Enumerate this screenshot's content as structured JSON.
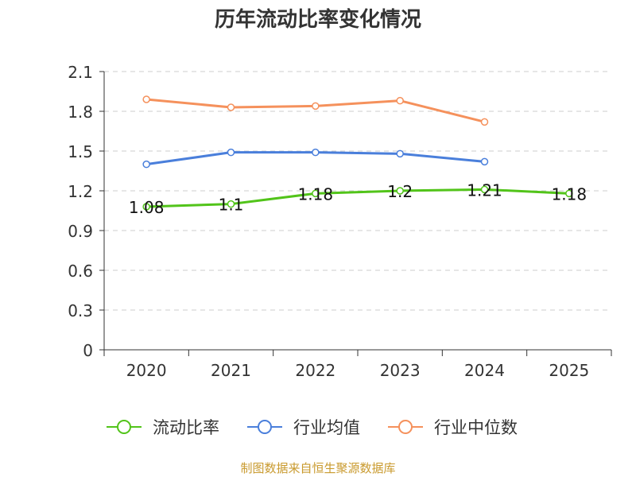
{
  "chart_data": {
    "type": "line",
    "title": "历年流动比率变化情况",
    "categories": [
      "2020",
      "2021",
      "2022",
      "2023",
      "2024",
      "2025"
    ],
    "ylim": [
      0,
      2.1
    ],
    "yticks": [
      "0",
      "0.3",
      "0.6",
      "0.9",
      "1.2",
      "1.5",
      "1.8",
      "2.1"
    ],
    "grid": true,
    "legend_position": "bottom",
    "series": [
      {
        "name": "流动比率",
        "color": "#52c41a",
        "values": [
          1.08,
          1.1,
          1.18,
          1.2,
          1.21,
          1.18
        ],
        "labels": [
          "1.08",
          "1.1",
          "1.18",
          "1.2",
          "1.21",
          "1.18"
        ]
      },
      {
        "name": "行业均值",
        "color": "#4a7fdb",
        "values": [
          1.4,
          1.49,
          1.49,
          1.48,
          1.42,
          null
        ]
      },
      {
        "name": "行业中位数",
        "color": "#f5915c",
        "values": [
          1.89,
          1.83,
          1.84,
          1.88,
          1.72,
          null
        ]
      }
    ]
  },
  "footer": {
    "source": "制图数据来自恒生聚源数据库"
  }
}
